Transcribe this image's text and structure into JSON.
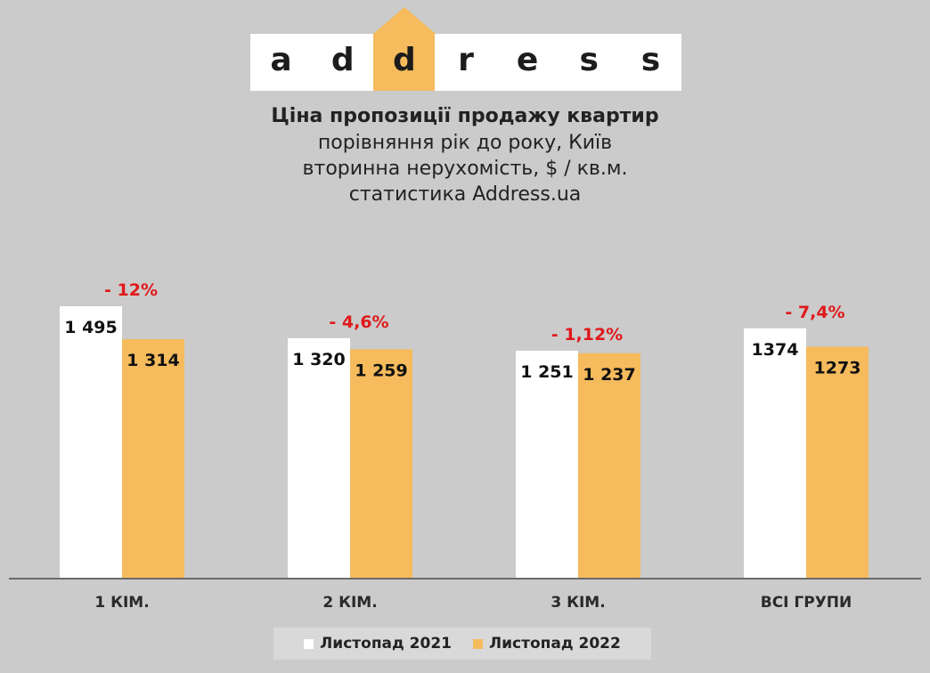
{
  "logo": {
    "letters": [
      "a",
      "d",
      "d",
      "r",
      "e",
      "s",
      "s"
    ],
    "highlight_index": 2,
    "arrow_color": "#f5bb5c"
  },
  "chart_data": {
    "type": "bar",
    "title": "Ціна пропозиції продажу квартир",
    "subtitle_lines": [
      "порівняння рік до року, Київ",
      "вторинна нерухомість, $ / кв.м.",
      "статистика  Address.ua"
    ],
    "categories": [
      "1 КІМ.",
      "2 КІМ.",
      "3 КІМ.",
      "ВСІ ГРУПИ"
    ],
    "series": [
      {
        "name": "Листопад 2021",
        "color": "#ffffff",
        "values": [
          1495,
          1320,
          1251,
          1374
        ],
        "labels": [
          "1 495",
          "1 320",
          "1 251",
          "1374"
        ]
      },
      {
        "name": "Листопад 2022",
        "color": "#f5bb5c",
        "values": [
          1314,
          1259,
          1237,
          1273
        ],
        "labels": [
          "1 314",
          "1 259",
          "1 237",
          "1273"
        ]
      }
    ],
    "change_labels": [
      "- 12%",
      "- 4,6%",
      "- 1,12%",
      "- 7,4%"
    ],
    "change_color": "#e0191b",
    "ylim": [
      0,
      1500
    ],
    "grid": false,
    "legend_position": "bottom"
  }
}
